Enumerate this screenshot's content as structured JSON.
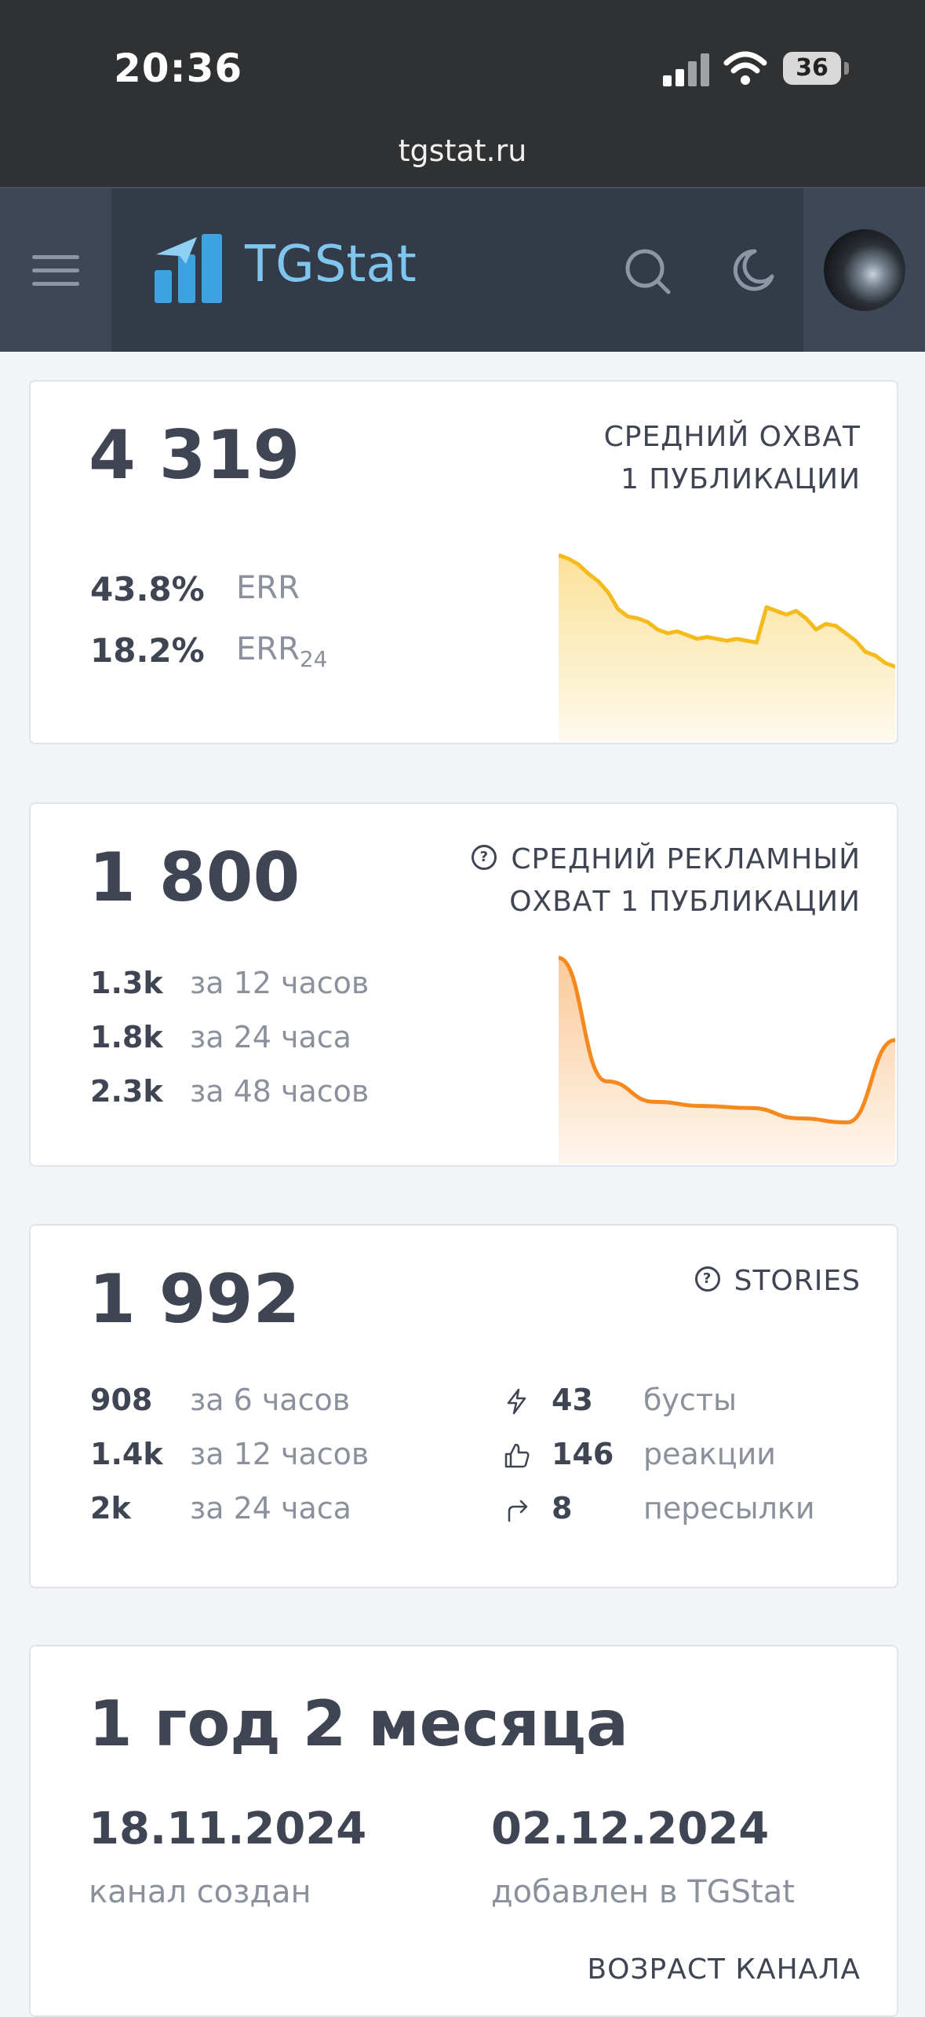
{
  "status_bar": {
    "time": "20:36",
    "battery": "36"
  },
  "browser": {
    "url": "tgstat.ru"
  },
  "navbar": {
    "brand": "TGStat"
  },
  "reach_card": {
    "value": "4 319",
    "caption_line1": "СРЕДНИЙ ОХВАТ",
    "caption_line2": "1 ПУБЛИКАЦИИ",
    "err_value": "43.8%",
    "err_label": "ERR",
    "err24_value": "18.2%",
    "err24_label": "ERR",
    "err24_sub": "24",
    "sparkline_color": "#f5bb1b",
    "sparkline_values": [
      100,
      98,
      95,
      90,
      86,
      80,
      71,
      67,
      66,
      64,
      60,
      58,
      59,
      57,
      55,
      56,
      55,
      54,
      55,
      54,
      53,
      72,
      70,
      68,
      70,
      66,
      60,
      63,
      62,
      58,
      54,
      48,
      46,
      42,
      40
    ]
  },
  "ad_reach_card": {
    "value": "1 800",
    "caption_line1": "СРЕДНИЙ РЕКЛАМНЫЙ",
    "caption_line2": "ОХВАТ 1 ПУБЛИКАЦИИ",
    "rows": [
      {
        "value": "1.3k",
        "label": "за 12 часов"
      },
      {
        "value": "1.8k",
        "label": "за 24 часа"
      },
      {
        "value": "2.3k",
        "label": "за 48 часов"
      }
    ],
    "sparkline_color": "#f5891e",
    "sparkline_values": [
      100,
      40,
      30,
      28,
      27,
      22,
      20,
      60
    ]
  },
  "stories_card": {
    "value": "1 992",
    "caption": "STORIES",
    "rows": [
      {
        "value": "908",
        "label": "за 6 часов"
      },
      {
        "value": "1.4k",
        "label": "за 12 часов"
      },
      {
        "value": "2k",
        "label": "за 24 часа"
      }
    ],
    "stats": [
      {
        "icon": "lightning-icon",
        "value": "43",
        "label": "бусты"
      },
      {
        "icon": "thumbs-up-icon",
        "value": "146",
        "label": "реакции"
      },
      {
        "icon": "share-arrow-icon",
        "value": "8",
        "label": "пересылки"
      }
    ]
  },
  "age_card": {
    "value": "1 год 2 месяца",
    "created_date": "18.11.2024",
    "created_label": "канал создан",
    "added_date": "02.12.2024",
    "added_label": "добавлен в TGStat",
    "caption": "ВОЗРАСТ КАНАЛА"
  }
}
